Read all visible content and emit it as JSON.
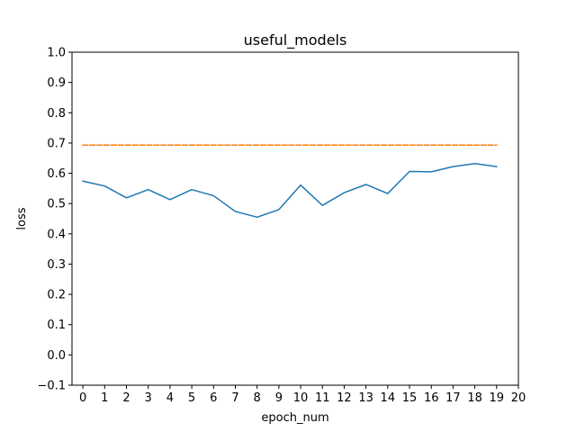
{
  "chart_data": {
    "type": "line",
    "title": "useful_models",
    "xlabel": "epoch_num",
    "ylabel": "loss",
    "xlim": [
      -0.5,
      20
    ],
    "ylim": [
      -0.1,
      1.0
    ],
    "xticks": [
      0,
      1,
      2,
      3,
      4,
      5,
      6,
      7,
      8,
      9,
      10,
      11,
      12,
      13,
      14,
      15,
      16,
      17,
      18,
      19,
      20
    ],
    "yticks": [
      -0.1,
      0.0,
      0.1,
      0.2,
      0.3,
      0.4,
      0.5,
      0.6,
      0.7,
      0.8,
      0.9,
      1.0
    ],
    "ytick_labels": [
      "−0.1",
      "0.0",
      "0.1",
      "0.2",
      "0.3",
      "0.4",
      "0.5",
      "0.6",
      "0.7",
      "0.8",
      "0.9",
      "1.0"
    ],
    "grid": false,
    "legend": "none",
    "series": [
      {
        "style": "solid",
        "color": "#1f77b4",
        "x": [
          0,
          1,
          2,
          3,
          4,
          5,
          6,
          7,
          8,
          9,
          10,
          11,
          12,
          13,
          14,
          15,
          16,
          17,
          18,
          19
        ],
        "y": [
          0.574,
          0.558,
          0.519,
          0.546,
          0.513,
          0.546,
          0.526,
          0.474,
          0.455,
          0.48,
          0.561,
          0.494,
          0.536,
          0.563,
          0.533,
          0.606,
          0.605,
          0.622,
          0.632,
          0.622
        ]
      },
      {
        "style": "dashed",
        "color": "#ff7f0e",
        "x": [
          0,
          19
        ],
        "y": [
          0.693,
          0.693
        ]
      }
    ]
  }
}
